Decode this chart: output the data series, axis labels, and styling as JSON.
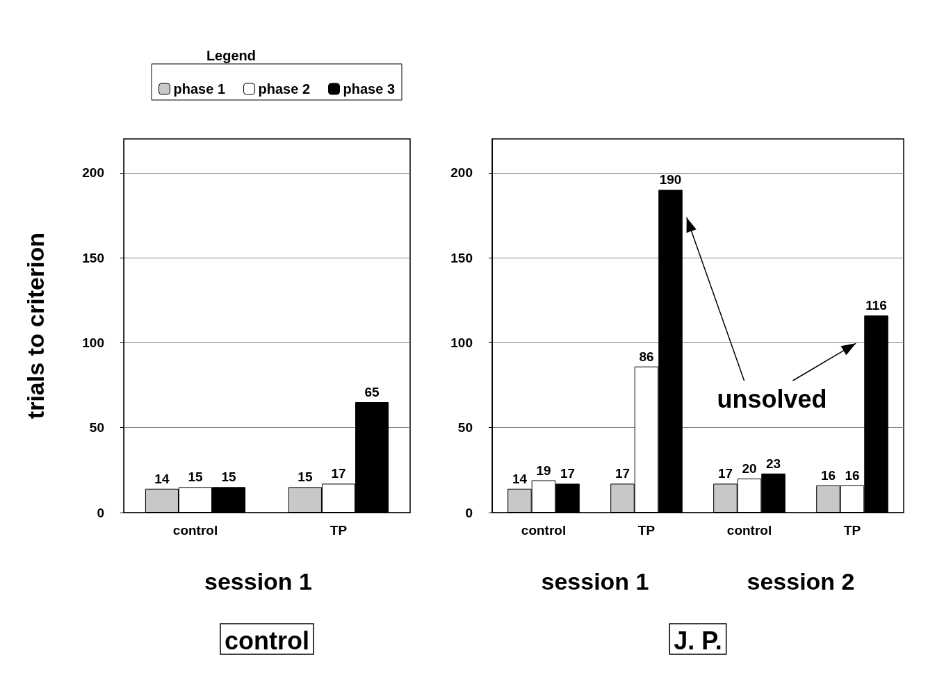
{
  "chart_data": [
    {
      "type": "bar",
      "title": "control",
      "xlabel": "session 1",
      "ylabel": "trials to criterion",
      "categories": [
        "control",
        "TP"
      ],
      "series": [
        {
          "name": "phase 1",
          "color": "#c8c8c8",
          "values": [
            14,
            15
          ]
        },
        {
          "name": "phase 2",
          "color": "#ffffff",
          "values": [
            15,
            17
          ]
        },
        {
          "name": "phase 3",
          "color": "#000000",
          "values": [
            15,
            65
          ]
        }
      ],
      "ylim": [
        0,
        220
      ],
      "yticks": [
        0,
        50,
        100,
        150,
        200
      ],
      "grid": "y",
      "data_labels": true,
      "legend": "top",
      "legend_title": "Legend"
    },
    {
      "type": "bar",
      "title": "J. P.",
      "categories": [
        "control",
        "TP",
        "control",
        "TP"
      ],
      "series": [
        {
          "color": "#c8c8c8",
          "values": [
            14,
            17,
            17,
            16
          ]
        },
        {
          "color": "#ffffff",
          "values": [
            19,
            86,
            20,
            16
          ]
        },
        {
          "color": "#000000",
          "values": [
            17,
            190,
            23,
            116
          ]
        }
      ],
      "ylim": [
        0,
        220
      ],
      "yticks": [
        0,
        50,
        100,
        150,
        200
      ],
      "grid": "y",
      "data_labels": true,
      "legend": false,
      "annotations": [
        "session 1",
        "session 2",
        "unsolved"
      ]
    }
  ]
}
